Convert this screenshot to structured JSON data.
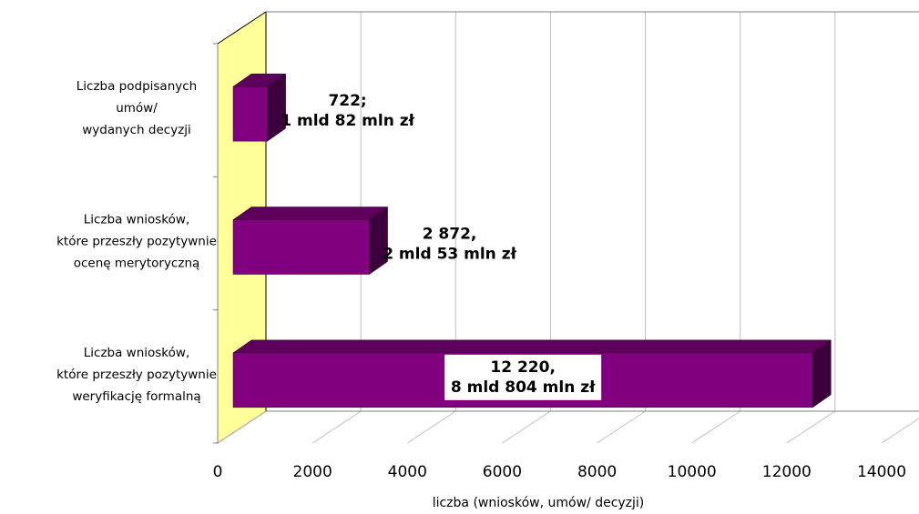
{
  "chart_data": {
    "type": "bar",
    "orientation": "horizontal",
    "style": "3d",
    "categories": [
      [
        "Liczba wniosków,",
        "które przeszły pozytywnie",
        "weryfikację formalną"
      ],
      [
        "Liczba wniosków,",
        "które przeszły pozytywnie",
        "ocenę merytoryczną"
      ],
      [
        "Liczba podpisanych",
        "umów/",
        "wydanych decyzji"
      ]
    ],
    "values": [
      12220,
      2872,
      722
    ],
    "data_labels": [
      [
        "12 220,",
        "8 mld 804 mln zł"
      ],
      [
        "2 872,",
        "2 mld 53 mln zł"
      ],
      [
        "722;",
        "1 mld 82 mln zł"
      ]
    ],
    "xlabel": "liczba (wniosków, umów/ decyzji)",
    "ylabel": "",
    "xlim": [
      0,
      14000
    ],
    "x_ticks": [
      0,
      2000,
      4000,
      6000,
      8000,
      10000,
      12000,
      14000
    ],
    "grid": true,
    "legend": "none",
    "colors": {
      "bar_front": "#800080",
      "bar_top": "#5c005c",
      "bar_side": "#3c003c",
      "back_wall": "#ffff99",
      "grid": "#c0c0c0"
    }
  }
}
